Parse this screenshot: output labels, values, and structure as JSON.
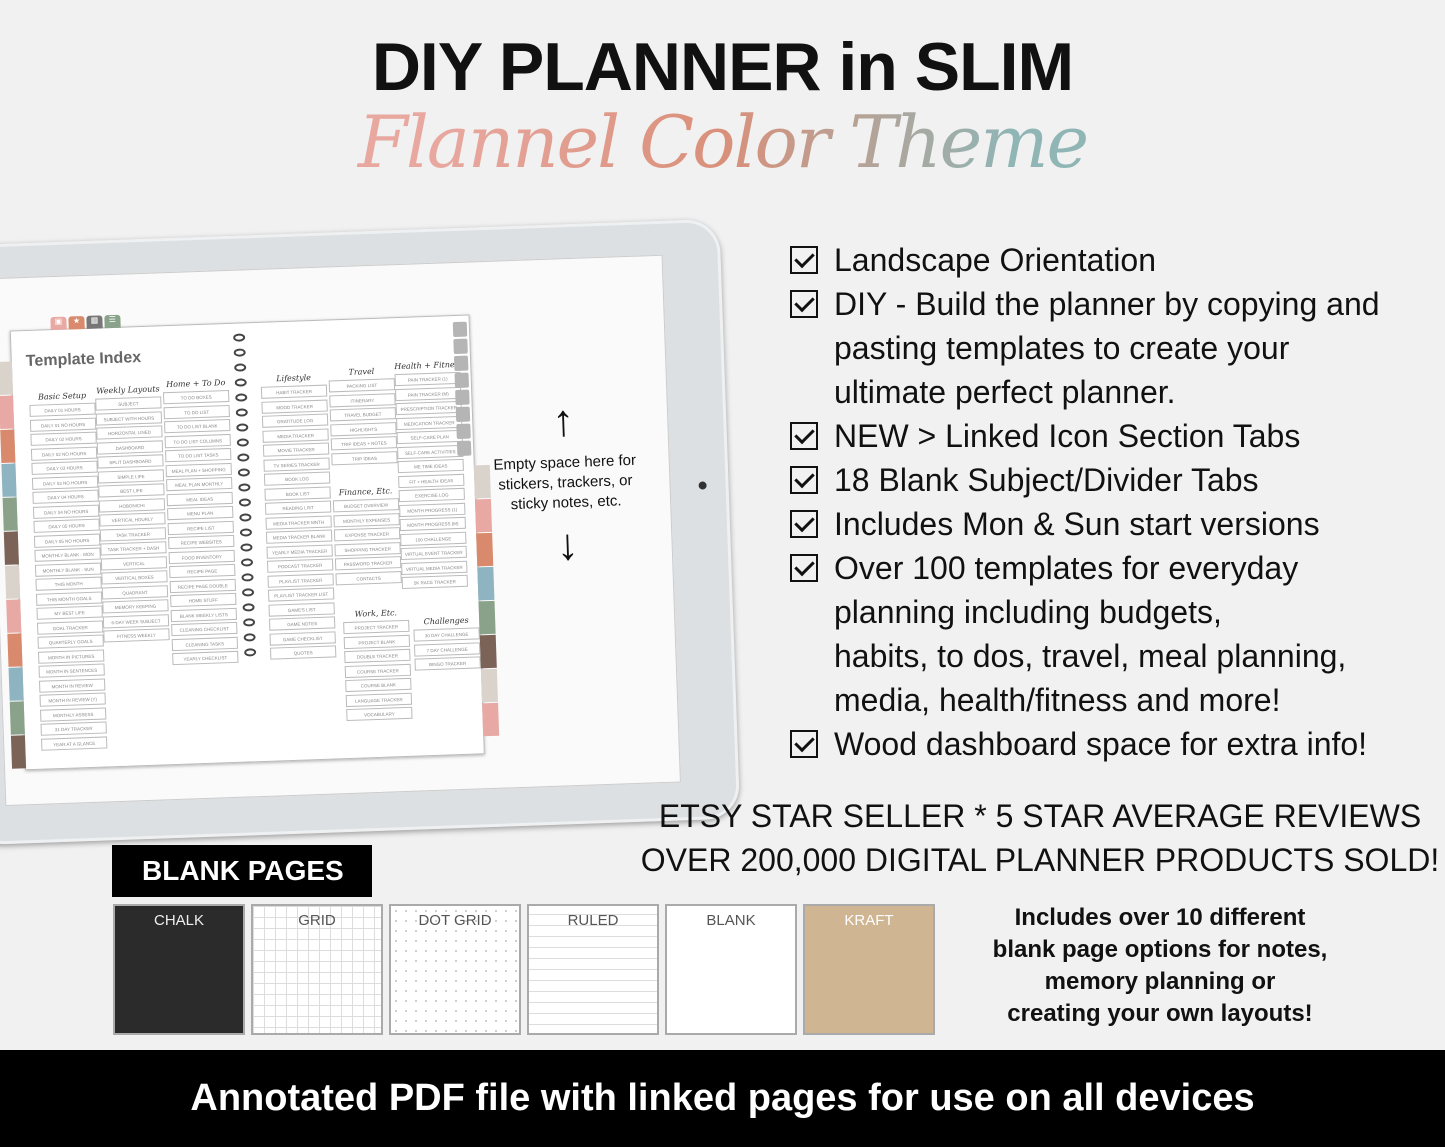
{
  "title": "DIY  PLANNER in SLIM",
  "subtitle": "Flannel Color Theme",
  "planner": {
    "heading": "Template Index",
    "columns": [
      {
        "title": "Basic Setup",
        "items": [
          "DAILY 01 HOURS",
          "DAILY 01 NO HOURS",
          "DAILY 02 HOURS",
          "DAILY 02 NO HOURS",
          "DAILY 03 HOURS",
          "DAILY 03 NO HOURS",
          "DAILY 04 HOURS",
          "DAILY 04 NO HOURS",
          "DAILY 05 HOURS",
          "DAILY 05 NO HOURS",
          "MONTHLY BLANK - MON",
          "MONTHLY BLANK - SUN",
          "THIS MONTH",
          "THIS MONTH GOALS",
          "MY BEST LIFE",
          "GOAL TRACKER",
          "QUARTERLY GOALS",
          "MONTH IN PICTURES",
          "MONTH IN SENTENCES",
          "MONTH IN REVIEW",
          "MONTH IN REVIEW (Y)",
          "MONTHLY ASSESS",
          "31 DAY TRACKER",
          "YEAR AT A GLANCE"
        ]
      },
      {
        "title": "Weekly Layouts",
        "items": [
          "SUBJECT",
          "SUBJECT WITH HOURS",
          "HORIZONTAL LINED",
          "DASHBOARD",
          "SPLIT DASHBOARD",
          "SIMPLE LIFE",
          "BEST LIFE",
          "HOBONICHI",
          "VERTICAL HOURLY",
          "TASK TRACKER",
          "TASK TRACKER + DASH",
          "VERTICAL",
          "VERTICAL BOXES",
          "QUADRANT",
          "MEMORY KEEPING",
          "6-DAY WEEK SUBJECT",
          "FITNESS WEEKLY"
        ]
      },
      {
        "title": "Home + To Do",
        "items": [
          "TO DO BOXES",
          "TO DO LIST",
          "TO DO LIST BLANK",
          "TO DO LIST COLUMNS",
          "TO DO LIST TASKS",
          "MEAL PLAN + SHOPPING",
          "MEAL PLAN MONTHLY",
          "MEAL IDEAS",
          "MENU PLAN",
          "RECIPE LIST",
          "RECIPE WEBSITES",
          "FOOD INVENTORY",
          "RECIPE PAGE",
          "RECIPE PAGE DOUBLE",
          "HOME STUFF",
          "BLANK WEEKLY LISTS",
          "CLEANING CHECKLIST",
          "CLEANING TASKS",
          "YEARLY CHECKLIST"
        ]
      },
      {
        "title": "Lifestyle",
        "items": [
          "HABIT TRACKER",
          "MOOD TRACKER",
          "GRATITUDE LOG",
          "MEDIA TRACKER",
          "MOVIE TRACKER",
          "TV SERIES TRACKER",
          "BOOK LOG",
          "BOOK LIST",
          "READING LIST",
          "MEDIA TRACKER MNTH",
          "MEDIA TRACKER BLANK",
          "YEARLY MEDIA TRACKER",
          "PODCAST TRACKER",
          "PLAYLIST TRACKER",
          "PLAYLIST TRACKER LIST",
          "GAME'S LIST",
          "GAME NOTES",
          "GAME CHECKLIST",
          "QUOTES"
        ]
      },
      {
        "title": "Travel",
        "items": [
          "PACKING LIST",
          "ITINERARY",
          "TRAVEL BUDGET",
          "HIGHLIGHTS",
          "TRIP IDEAS + NOTES",
          "TRIP IDEAS"
        ]
      },
      {
        "title": "Finance, Etc.",
        "items": [
          "BUDGET OVERVIEW",
          "MONTHLY EXPENSES",
          "EXPENSE TRACKER",
          "SHOPPING TRACKER",
          "PASSWORD TRACKER",
          "CONTACTS"
        ]
      },
      {
        "title": "Work, Etc.",
        "items": [
          "PROJECT TRACKER",
          "PROJECT BLANK",
          "DOUBLE TRACKER",
          "COURSE TRACKER",
          "COURSE BLANK",
          "LANGUAGE TRACKER",
          "VOCABULARY"
        ]
      },
      {
        "title": "Health + Fitness",
        "items": [
          "PAIN TRACKER (1)",
          "PAIN TRACKER (M)",
          "PRESCRIPTION TRACKER",
          "MEDICATION TRACKER",
          "SELF-CARE PLAN",
          "SELF-CARE ACTIVITIES",
          "ME TIME IDEAS",
          "FIT + HEALTH IDEAS",
          "EXERCISE LOG",
          "MONTH PROGRESS (1)",
          "MONTH PROGRESS (M)",
          "100 CHALLENGE",
          "VIRTUAL EVENT TRACKER",
          "VIRTUAL MEDIA TRACKER",
          "5K RACE TRACKER"
        ]
      },
      {
        "title": "Challenges",
        "items": [
          "30 DAY CHALLENGE",
          "7 DAY CHALLENGE",
          "BINGO TRACKER"
        ]
      }
    ],
    "tab_colors": [
      "#d9d3cb",
      "#e8a9a5",
      "#d98a6c",
      "#8db4c0",
      "#8aa28a",
      "#7b6358",
      "#d9d3cb",
      "#e8a9a5",
      "#d98a6c",
      "#8db4c0",
      "#8aa28a",
      "#7b6358"
    ]
  },
  "empty_note": "Empty space here for stickers, trackers, or sticky notes, etc.",
  "features": [
    [
      "Landscape Orientation"
    ],
    [
      "DIY - Build the planner by copying and",
      "pasting templates to create your",
      "ultimate perfect planner."
    ],
    [
      "NEW > Linked Icon Section Tabs"
    ],
    [
      "18 Blank Subject/Divider Tabs"
    ],
    [
      "Includes Mon & Sun start versions"
    ],
    [
      "Over 100 templates for everyday",
      "planning including budgets,",
      "habits, to dos, travel, meal planning,",
      "media, health/fitness and more!"
    ],
    [
      "Wood dashboard space for extra info!"
    ]
  ],
  "etsy": [
    "ETSY STAR SELLER * 5 STAR AVERAGE REVIEWS",
    "OVER 200,000 DIGITAL PLANNER PRODUCTS SOLD!"
  ],
  "blank_pages": {
    "label": "BLANK PAGES",
    "options": [
      {
        "name": "CHALK",
        "color": "#2b2b2b"
      },
      {
        "name": "GRID",
        "color": "#ffffff"
      },
      {
        "name": "DOT GRID",
        "color": "#ffffff"
      },
      {
        "name": "RULED",
        "color": "#ffffff"
      },
      {
        "name": "BLANK",
        "color": "#ffffff"
      },
      {
        "name": "KRAFT",
        "color": "#cfb591"
      }
    ],
    "description": [
      "Includes over 10 different",
      "blank page options for notes,",
      "memory planning or",
      "creating your own layouts!"
    ]
  },
  "footer": "Annotated PDF file with linked pages for use on all devices"
}
